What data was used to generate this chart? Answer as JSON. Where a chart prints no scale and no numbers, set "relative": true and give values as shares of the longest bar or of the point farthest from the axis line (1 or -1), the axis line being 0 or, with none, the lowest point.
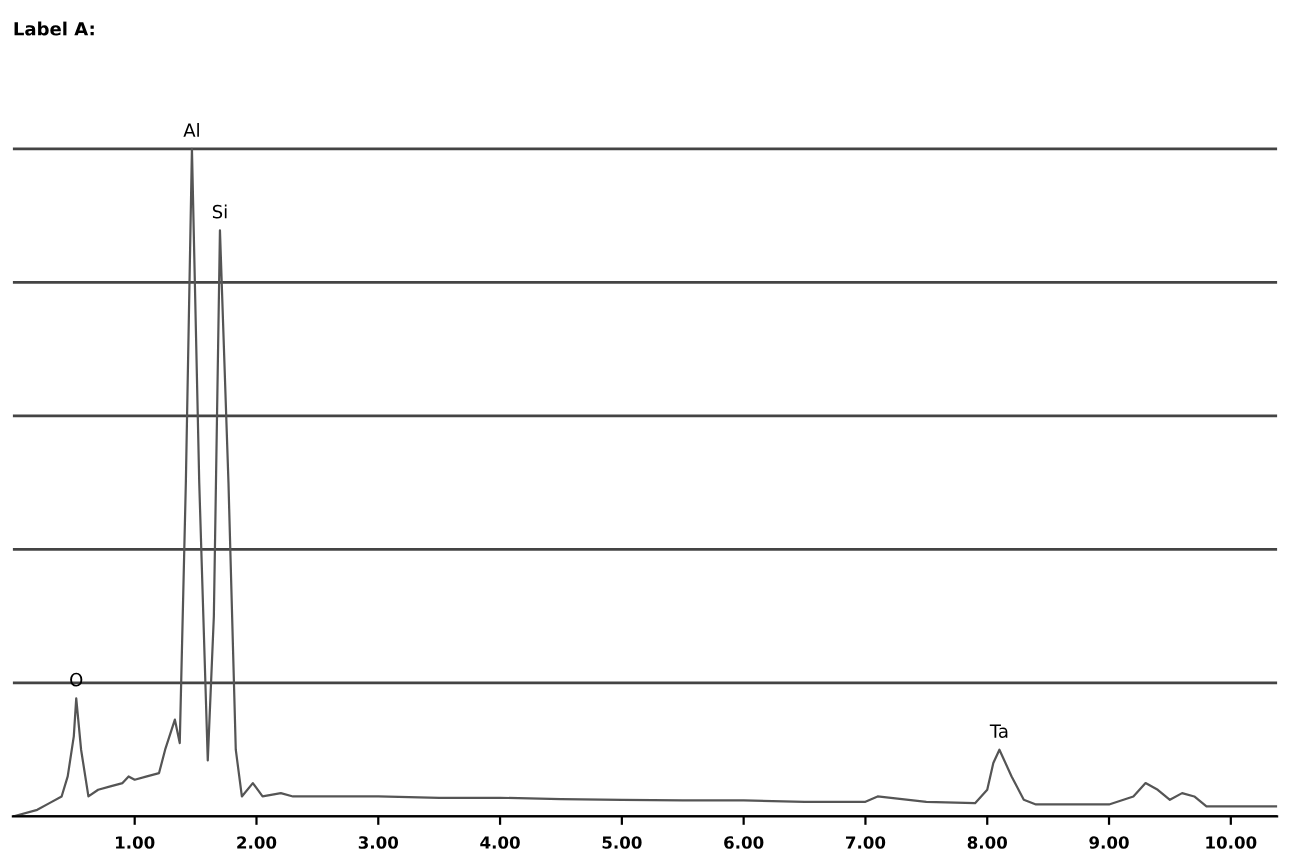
{
  "chart_data": {
    "type": "line",
    "title": "Label A:",
    "relative": true,
    "color": "#555555",
    "grid": "y",
    "x": [
      0.0,
      0.2,
      0.3,
      0.4,
      0.45,
      0.5,
      0.52,
      0.56,
      0.62,
      0.7,
      0.8,
      0.9,
      0.95,
      1.0,
      1.1,
      1.2,
      1.25,
      1.33,
      1.37,
      1.42,
      1.47,
      1.53,
      1.6,
      1.65,
      1.7,
      1.77,
      1.83,
      1.88,
      1.97,
      2.05,
      2.2,
      2.3,
      2.6,
      3.0,
      3.5,
      4.0,
      4.5,
      5.0,
      5.5,
      6.0,
      6.5,
      7.0,
      7.1,
      7.5,
      7.9,
      8.0,
      8.05,
      8.1,
      8.2,
      8.3,
      8.4,
      9.0,
      9.2,
      9.3,
      9.4,
      9.5,
      9.6,
      9.7,
      9.8,
      10.38
    ],
    "values": [
      0.0,
      0.01,
      0.02,
      0.03,
      0.06,
      0.12,
      0.177,
      0.1,
      0.03,
      0.04,
      0.045,
      0.05,
      0.06,
      0.055,
      0.06,
      0.065,
      0.1,
      0.145,
      0.11,
      0.5,
      1.0,
      0.5,
      0.084,
      0.3,
      0.878,
      0.5,
      0.1,
      0.03,
      0.05,
      0.03,
      0.035,
      0.03,
      0.03,
      0.03,
      0.028,
      0.028,
      0.026,
      0.025,
      0.024,
      0.024,
      0.022,
      0.022,
      0.03,
      0.022,
      0.02,
      0.04,
      0.08,
      0.1,
      0.06,
      0.025,
      0.018,
      0.018,
      0.03,
      0.05,
      0.04,
      0.025,
      0.035,
      0.03,
      0.015,
      0.015
    ],
    "xlim": [
      0,
      10.38
    ],
    "xticks": [
      {
        "value": 1,
        "label": "1.00"
      },
      {
        "value": 2,
        "label": "2.00"
      },
      {
        "value": 3,
        "label": "3.00"
      },
      {
        "value": 4,
        "label": "4.00"
      },
      {
        "value": 5,
        "label": "5.00"
      },
      {
        "value": 6,
        "label": "6.00"
      },
      {
        "value": 7,
        "label": "7.00"
      },
      {
        "value": 8,
        "label": "8.00"
      },
      {
        "value": 9,
        "label": "9.00"
      },
      {
        "value": 10,
        "label": "10.00"
      }
    ],
    "annotations": [
      {
        "text": "O",
        "x": 0.52,
        "y": 0.177
      },
      {
        "text": "Al",
        "x": 1.47,
        "y": 1.0
      },
      {
        "text": "Si",
        "x": 1.7,
        "y": 0.878
      },
      {
        "text": "Ta",
        "x": 8.1,
        "y": 0.1
      }
    ]
  }
}
